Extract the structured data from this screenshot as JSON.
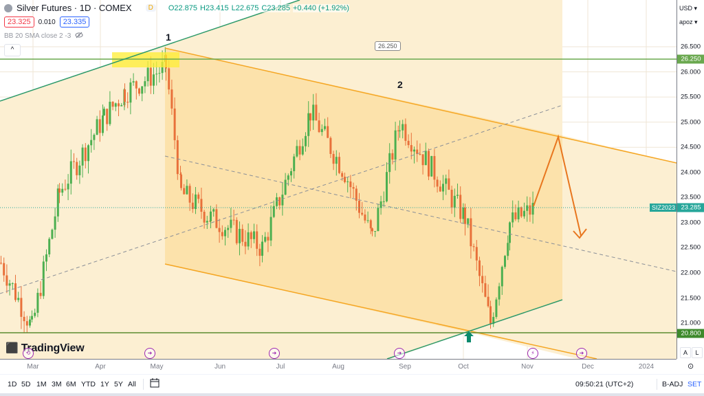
{
  "header": {
    "symbol_title": "Silver Futures · 1D · COMEX",
    "market_badge": "D",
    "ohlc": {
      "open": "O22.875",
      "high": "H23.415",
      "low": "L22.675",
      "close": "C23.285",
      "change": "+0.440 (+1.92%)"
    },
    "sell_price": "23.325",
    "spread": "0.010",
    "buy_price": "23.335",
    "indicator": "BB 20 SMA close 2 -3",
    "collapse_glyph": "^"
  },
  "price_axis": {
    "currency": "USD ▾",
    "scale_mode": "apoz ▾",
    "ticks": [
      "26.500",
      "26.000",
      "25.500",
      "25.000",
      "24.500",
      "24.000",
      "23.500",
      "23.000",
      "22.500",
      "22.000",
      "21.500",
      "21.000"
    ],
    "labels": {
      "resistance": "26.250",
      "last": "23.285",
      "support": "20.800",
      "symbol_tag": "SIZ2023"
    },
    "auto_button": "A",
    "log_button": "L"
  },
  "time_axis": {
    "labels": [
      "Mar",
      "Apr",
      "May",
      "Jun",
      "Jul",
      "Aug",
      "Sep",
      "Oct",
      "Nov",
      "Dec",
      "2024"
    ]
  },
  "annotations": {
    "callout": "26.250",
    "wave_1": "1",
    "wave_2": "2",
    "logo": "TradingView"
  },
  "bottom_bar": {
    "ranges": [
      "1D",
      "5D",
      "1M",
      "3M",
      "6M",
      "YTD",
      "1Y",
      "5Y",
      "All"
    ],
    "clock": "09:50:21 (UTC+2)",
    "adj": "B-ADJ",
    "session": "SET"
  },
  "colors": {
    "up": "#4caf50",
    "down": "#e8703a",
    "channel": "#f5a623",
    "support_line": "#5b9b3c",
    "trend_line": "#2e9a6b",
    "last_price": "#26a69a",
    "event": "#9c27b0"
  },
  "chart_data": {
    "type": "candlestick",
    "title": "Silver Futures · 1D · COMEX",
    "xlabel": "",
    "ylabel": "USD",
    "ylim": [
      20.5,
      26.8
    ],
    "x_ticks": [
      "Mar",
      "Apr",
      "May",
      "Jun",
      "Jul",
      "Aug",
      "Sep",
      "Oct",
      "Nov",
      "Dec",
      "2024"
    ],
    "horizontal_levels": [
      26.25,
      20.8
    ],
    "last_price": 23.285,
    "descending_channel": {
      "upper_start": [
        240,
        26.4
      ],
      "upper_end": [
        818,
        24.65
      ],
      "lower_start": [
        240,
        22.1
      ],
      "lower_end": [
        680,
        20.85
      ]
    },
    "forecast_path": [
      [
        776,
        23.28
      ],
      [
        812,
        24.7
      ],
      [
        843,
        22.75
      ]
    ],
    "series_approx_close": [
      {
        "period": "Feb",
        "close": 22.2
      },
      {
        "period": "Mar",
        "close": 20.9
      },
      {
        "period": "Mar-end",
        "close": 23.6
      },
      {
        "period": "Apr",
        "close": 25.1
      },
      {
        "period": "Apr-mid",
        "close": 25.6
      },
      {
        "period": "May-start",
        "close": 26.1
      },
      {
        "period": "May-end",
        "close": 23.6
      },
      {
        "period": "Jun",
        "close": 23.1
      },
      {
        "period": "Jun-end",
        "close": 22.5
      },
      {
        "period": "Jul-mid",
        "close": 25.2
      },
      {
        "period": "Aug",
        "close": 24.0
      },
      {
        "period": "Aug-mid",
        "close": 22.7
      },
      {
        "period": "Sep-start",
        "close": 25.0
      },
      {
        "period": "Sep-mid",
        "close": 23.1
      },
      {
        "period": "Oct-start",
        "close": 21.0
      },
      {
        "period": "Oct-mid",
        "close": 23.0
      },
      {
        "period": "Nov-start",
        "close": 23.285
      }
    ]
  }
}
